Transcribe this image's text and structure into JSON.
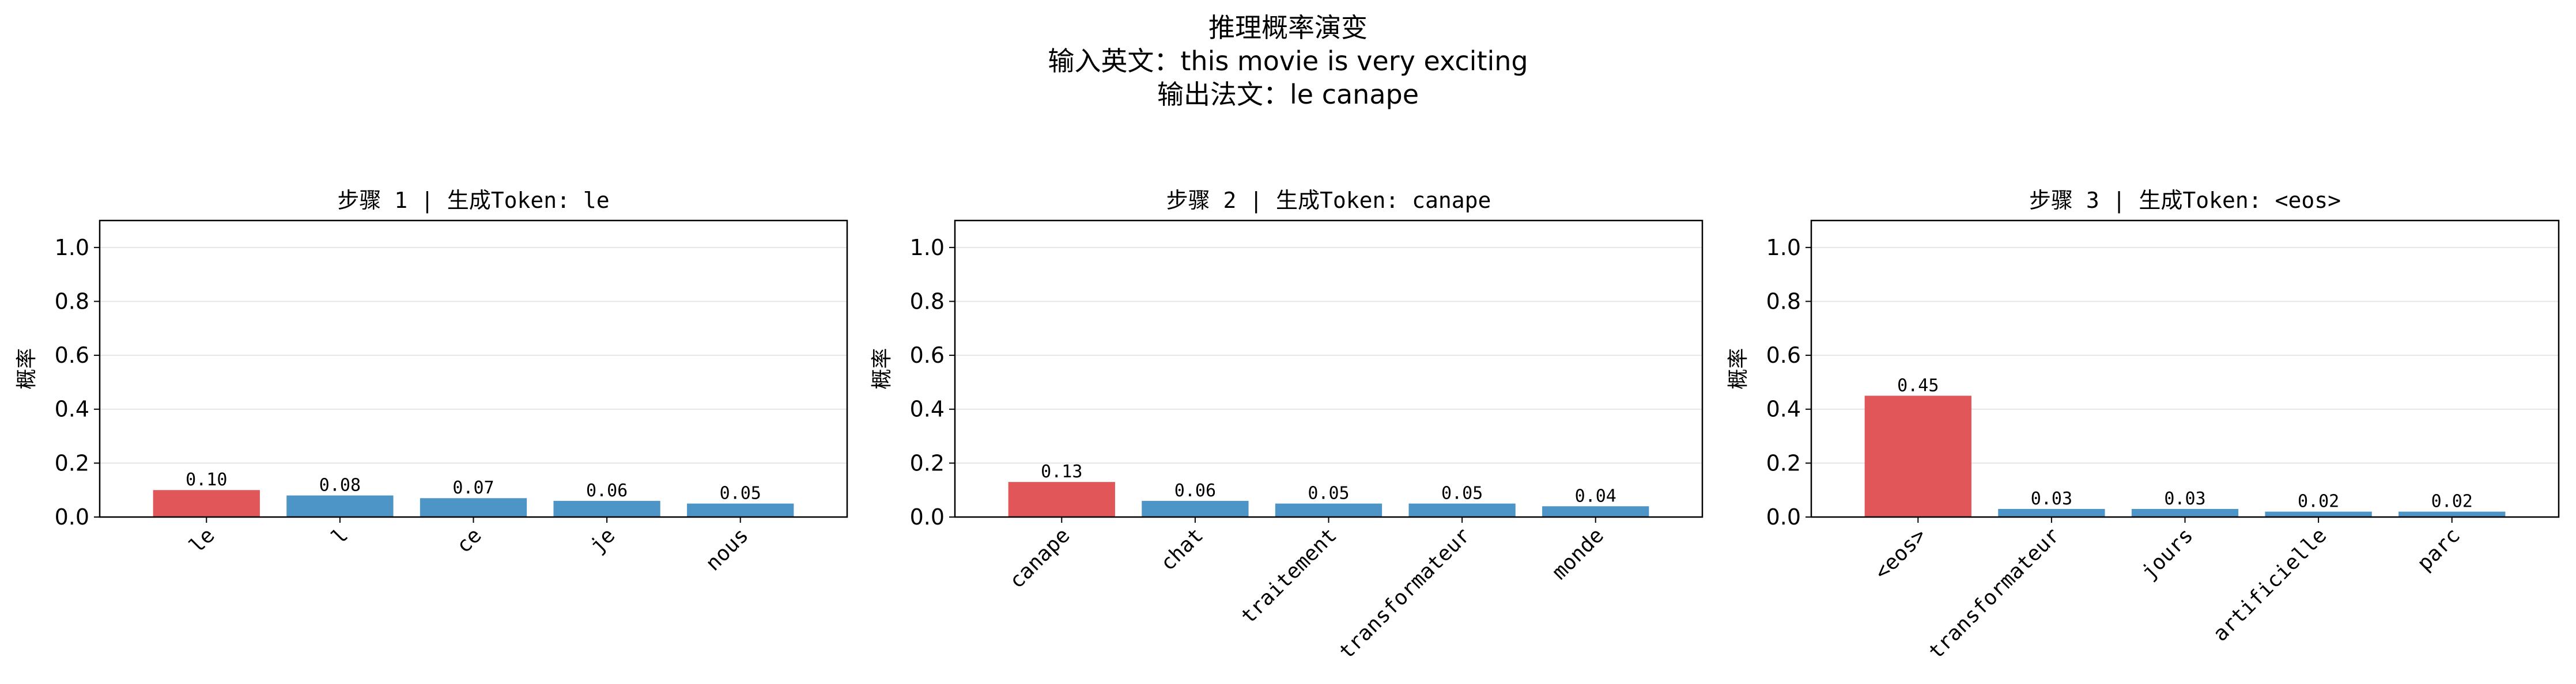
{
  "figure": {
    "title_lines": [
      "推理概率演变",
      "输入英文：this movie is very exciting",
      "输出法文：le canape"
    ]
  },
  "colors": {
    "selected": "#e15759",
    "other": "#4e95c7",
    "grid": "#e5e5e5",
    "axis": "#000000"
  },
  "chart_data": [
    {
      "type": "bar",
      "title": "步骤 1 | 生成Token: le",
      "ylabel": "概率",
      "ylim": [
        0,
        1.1
      ],
      "yticks": [
        0.0,
        0.2,
        0.4,
        0.6,
        0.8,
        1.0
      ],
      "ytick_labels": [
        "0.0",
        "0.2",
        "0.4",
        "0.6",
        "0.8",
        "1.0"
      ],
      "grid": "y",
      "categories": [
        "le",
        "l",
        "ce",
        "je",
        "nous"
      ],
      "values": [
        0.1,
        0.08,
        0.07,
        0.06,
        0.05
      ],
      "value_labels": [
        "0.10",
        "0.08",
        "0.07",
        "0.06",
        "0.05"
      ],
      "highlight_index": 0
    },
    {
      "type": "bar",
      "title": "步骤 2 | 生成Token: canape",
      "ylabel": "概率",
      "ylim": [
        0,
        1.1
      ],
      "yticks": [
        0.0,
        0.2,
        0.4,
        0.6,
        0.8,
        1.0
      ],
      "ytick_labels": [
        "0.0",
        "0.2",
        "0.4",
        "0.6",
        "0.8",
        "1.0"
      ],
      "grid": "y",
      "categories": [
        "canape",
        "chat",
        "traitement",
        "transformateur",
        "monde"
      ],
      "values": [
        0.13,
        0.06,
        0.05,
        0.05,
        0.04
      ],
      "value_labels": [
        "0.13",
        "0.06",
        "0.05",
        "0.05",
        "0.04"
      ],
      "highlight_index": 0
    },
    {
      "type": "bar",
      "title": "步骤 3 | 生成Token: <eos>",
      "ylabel": "概率",
      "ylim": [
        0,
        1.1
      ],
      "yticks": [
        0.0,
        0.2,
        0.4,
        0.6,
        0.8,
        1.0
      ],
      "ytick_labels": [
        "0.0",
        "0.2",
        "0.4",
        "0.6",
        "0.8",
        "1.0"
      ],
      "grid": "y",
      "categories": [
        "<eos>",
        "transformateur",
        "jours",
        "artificielle",
        "parc"
      ],
      "values": [
        0.45,
        0.03,
        0.03,
        0.02,
        0.02
      ],
      "value_labels": [
        "0.45",
        "0.03",
        "0.03",
        "0.02",
        "0.02"
      ],
      "highlight_index": 0
    }
  ]
}
